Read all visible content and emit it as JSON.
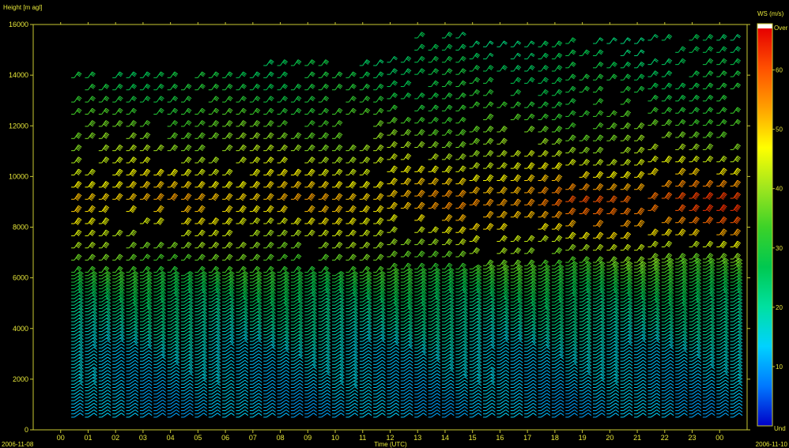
{
  "chart_data": {
    "type": "wind_barb_time_height",
    "ylabel": "Height [m agl]",
    "xlabel": "Time (UTC)",
    "start_date": "2006-11-08",
    "end_date": "2006-11-10",
    "x_ticks": [
      "00",
      "01",
      "02",
      "03",
      "04",
      "05",
      "06",
      "07",
      "08",
      "09",
      "10",
      "11",
      "12",
      "13",
      "14",
      "15",
      "16",
      "17",
      "18",
      "19",
      "20",
      "21",
      "22",
      "23",
      "00"
    ],
    "xlim_hours": [
      -1,
      25
    ],
    "y_ticks": [
      0,
      2000,
      4000,
      6000,
      8000,
      10000,
      12000,
      14000,
      16000
    ],
    "ylim": [
      0,
      16000
    ],
    "colorbar": {
      "label": "WS (m/s)",
      "over_label": "Over",
      "under_label": "Und",
      "ticks": [
        10,
        20,
        30,
        40,
        50,
        60
      ],
      "range": [
        0,
        67
      ],
      "colors": [
        "#0000c8",
        "#0078ff",
        "#00d2ff",
        "#00e0a0",
        "#00c850",
        "#3cd228",
        "#a0e61e",
        "#ffff00",
        "#ffa000",
        "#ff5000",
        "#e60000"
      ],
      "over_color": "#ffffff"
    },
    "profiles": {
      "interval_hours": 0.5,
      "bottom_height": 500,
      "description_levels": [
        {
          "height": 1000,
          "speed": 12
        },
        {
          "height": 3000,
          "speed": 15
        },
        {
          "height": 5000,
          "speed": 24
        },
        {
          "height": 7000,
          "speed": 38
        },
        {
          "height": 9000,
          "speed": 52
        },
        {
          "height": 11000,
          "speed": 40
        },
        {
          "height": 13000,
          "speed": 30
        },
        {
          "height": 15000,
          "speed": 25
        }
      ]
    }
  }
}
